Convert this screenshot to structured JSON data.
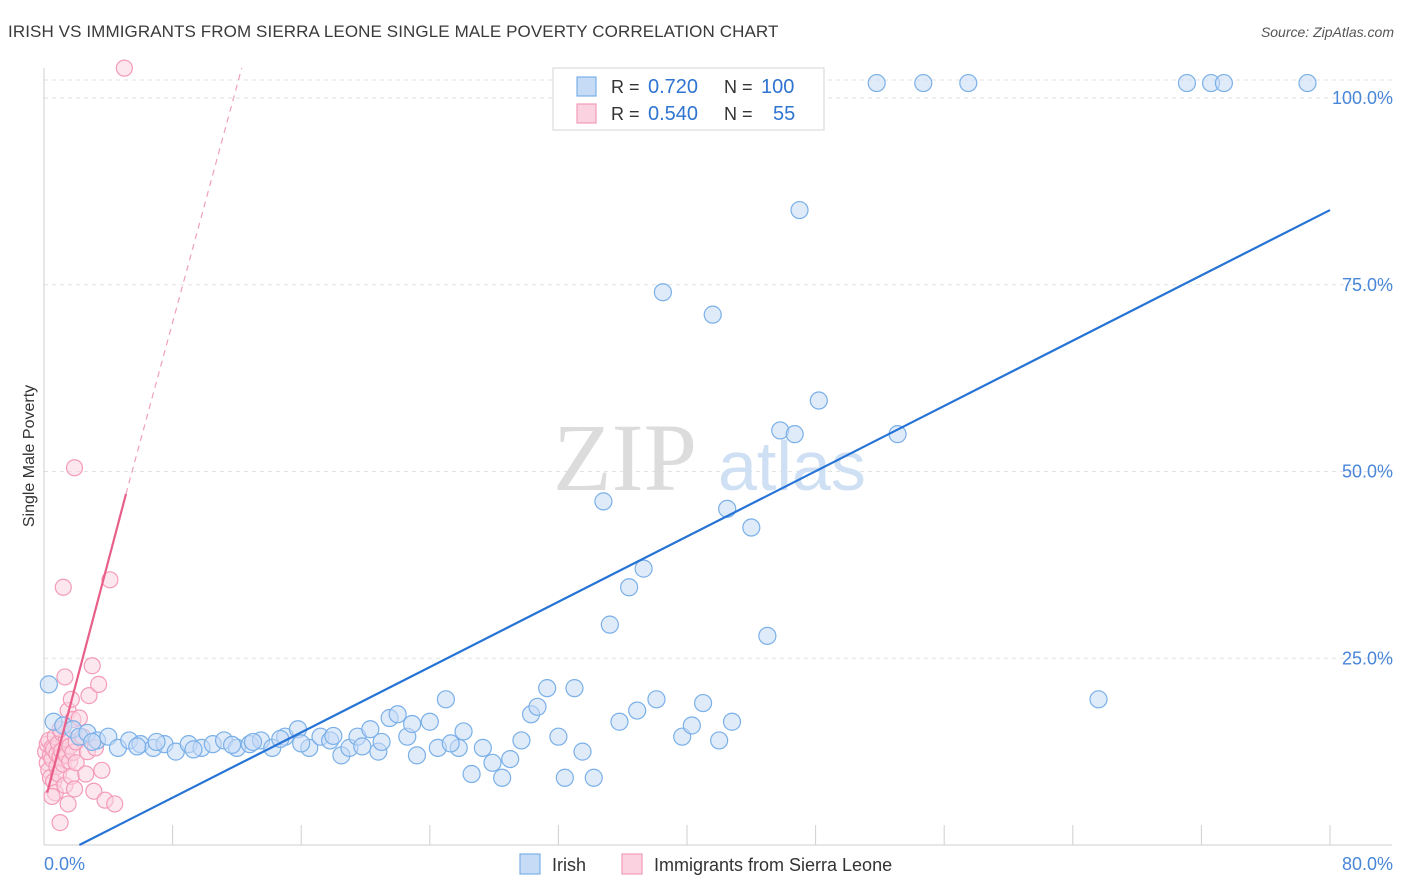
{
  "title": "IRISH VS IMMIGRANTS FROM SIERRA LEONE SINGLE MALE POVERTY CORRELATION CHART",
  "source": "Source: ZipAtlas.com",
  "watermark": {
    "zip": "ZIP",
    "atlas": "atlas"
  },
  "legend": {
    "rows": [
      {
        "r_label": "R =",
        "r_value": "0.720",
        "n_label": "N =",
        "n_value": "100",
        "color": "#7ab0e8"
      },
      {
        "r_label": "R =",
        "r_value": "0.540",
        "n_label": "N =",
        "n_value": "55",
        "color": "#f39bb8"
      }
    ]
  },
  "chart_data": {
    "type": "scatter",
    "xlabel": "",
    "ylabel": "Single Male Poverty",
    "xlim": [
      0,
      80
    ],
    "ylim": [
      0,
      100
    ],
    "x_tick_labels": [
      {
        "value": 0,
        "label": "0.0%"
      },
      {
        "value": 80,
        "label": "80.0%"
      }
    ],
    "y_tick_labels": [
      {
        "value": 25,
        "label": "25.0%"
      },
      {
        "value": 50,
        "label": "50.0%"
      },
      {
        "value": 75,
        "label": "75.0%"
      },
      {
        "value": 100,
        "label": "100.0%"
      }
    ],
    "grid": true,
    "legend_position": "bottom",
    "series": [
      {
        "name": "Irish",
        "color": "#7ab0e8",
        "line_color": "#2673d6",
        "trend": {
          "x": [
            2.2,
            80
          ],
          "y": [
            0.0,
            85.0
          ]
        },
        "points": [
          [
            0.3,
            21.5
          ],
          [
            0.6,
            16.5
          ],
          [
            1.2,
            16.0
          ],
          [
            1.8,
            15.5
          ],
          [
            2.2,
            14.5
          ],
          [
            2.7,
            15.0
          ],
          [
            3.3,
            14.0
          ],
          [
            4.0,
            14.5
          ],
          [
            4.6,
            13.0
          ],
          [
            5.3,
            14.0
          ],
          [
            6.0,
            13.5
          ],
          [
            6.8,
            13.0
          ],
          [
            7.5,
            13.5
          ],
          [
            8.2,
            12.5
          ],
          [
            9.0,
            13.5
          ],
          [
            9.8,
            13.0
          ],
          [
            10.5,
            13.5
          ],
          [
            11.2,
            14.0
          ],
          [
            12.0,
            13.0
          ],
          [
            12.8,
            13.5
          ],
          [
            13.5,
            14.0
          ],
          [
            14.2,
            13.0
          ],
          [
            15.0,
            14.5
          ],
          [
            15.8,
            15.5
          ],
          [
            16.5,
            13.0
          ],
          [
            17.2,
            14.5
          ],
          [
            17.8,
            14.0
          ],
          [
            18.5,
            12.0
          ],
          [
            19.0,
            13.0
          ],
          [
            19.5,
            14.5
          ],
          [
            20.3,
            15.5
          ],
          [
            20.8,
            12.5
          ],
          [
            21.5,
            17.0
          ],
          [
            22.0,
            17.5
          ],
          [
            22.6,
            14.5
          ],
          [
            23.2,
            12.0
          ],
          [
            24.0,
            16.5
          ],
          [
            24.5,
            13.0
          ],
          [
            25.0,
            19.5
          ],
          [
            25.8,
            13.0
          ],
          [
            26.6,
            9.5
          ],
          [
            27.3,
            13.0
          ],
          [
            27.9,
            11.0
          ],
          [
            28.5,
            9.0
          ],
          [
            29.0,
            11.5
          ],
          [
            29.7,
            14.0
          ],
          [
            30.3,
            17.5
          ],
          [
            30.7,
            18.5
          ],
          [
            31.3,
            21.0
          ],
          [
            32.0,
            14.5
          ],
          [
            32.4,
            9.0
          ],
          [
            33.0,
            21.0
          ],
          [
            33.5,
            12.5
          ],
          [
            34.2,
            9.0
          ],
          [
            34.8,
            46.0
          ],
          [
            35.2,
            29.5
          ],
          [
            35.8,
            16.5
          ],
          [
            36.4,
            34.5
          ],
          [
            36.9,
            18.0
          ],
          [
            37.3,
            37.0
          ],
          [
            37.8,
            97.0
          ],
          [
            38.1,
            19.5
          ],
          [
            38.5,
            74.0
          ],
          [
            39.7,
            14.5
          ],
          [
            40.3,
            16.0
          ],
          [
            41.0,
            19.0
          ],
          [
            41.6,
            71.0
          ],
          [
            42.0,
            14.0
          ],
          [
            42.5,
            45.0
          ],
          [
            42.8,
            16.5
          ],
          [
            43.0,
            102.0
          ],
          [
            44.0,
            42.5
          ],
          [
            45.0,
            28.0
          ],
          [
            45.8,
            55.5
          ],
          [
            46.7,
            55.0
          ],
          [
            47.0,
            85.0
          ],
          [
            48.2,
            59.5
          ],
          [
            51.8,
            102.0
          ],
          [
            53.1,
            55.0
          ],
          [
            54.7,
            102.0
          ],
          [
            57.5,
            102.0
          ],
          [
            65.6,
            19.5
          ],
          [
            71.1,
            102.0
          ],
          [
            72.6,
            102.0
          ],
          [
            73.4,
            102.0
          ],
          [
            78.6,
            102.0
          ],
          [
            3.0,
            13.8
          ],
          [
            5.8,
            13.2
          ],
          [
            7.0,
            13.8
          ],
          [
            9.3,
            12.8
          ],
          [
            11.7,
            13.4
          ],
          [
            13.0,
            13.8
          ],
          [
            14.7,
            14.2
          ],
          [
            16.0,
            13.6
          ],
          [
            18.0,
            14.6
          ],
          [
            19.8,
            13.2
          ],
          [
            21.0,
            13.8
          ],
          [
            22.9,
            16.2
          ],
          [
            25.3,
            13.6
          ],
          [
            26.1,
            15.2
          ]
        ]
      },
      {
        "name": "Immigrants from Sierra Leone",
        "color": "#f39bb8",
        "line_color": "#e8608a",
        "trend": {
          "x": [
            0.2,
            5.1
          ],
          "y": [
            7.0,
            47.0
          ]
        },
        "trend_dashed": {
          "x": [
            5.1,
            12.3
          ],
          "y": [
            47.0,
            104.0
          ]
        },
        "points": [
          [
            0.1,
            12.5
          ],
          [
            0.2,
            11.0
          ],
          [
            0.2,
            13.5
          ],
          [
            0.3,
            10.0
          ],
          [
            0.3,
            14.0
          ],
          [
            0.4,
            12.0
          ],
          [
            0.4,
            9.0
          ],
          [
            0.5,
            13.0
          ],
          [
            0.5,
            11.5
          ],
          [
            0.6,
            8.5
          ],
          [
            0.6,
            12.8
          ],
          [
            0.7,
            7.0
          ],
          [
            0.7,
            14.5
          ],
          [
            0.8,
            10.5
          ],
          [
            0.8,
            12.2
          ],
          [
            0.9,
            9.5
          ],
          [
            0.9,
            13.6
          ],
          [
            1.0,
            11.8
          ],
          [
            1.0,
            3.0
          ],
          [
            1.1,
            15.0
          ],
          [
            1.1,
            12.6
          ],
          [
            1.2,
            10.8
          ],
          [
            1.2,
            34.5
          ],
          [
            1.3,
            22.5
          ],
          [
            1.3,
            8.0
          ],
          [
            1.4,
            12.0
          ],
          [
            1.4,
            14.2
          ],
          [
            1.5,
            18.0
          ],
          [
            1.5,
            5.5
          ],
          [
            1.6,
            11.2
          ],
          [
            1.6,
            13.2
          ],
          [
            1.7,
            19.5
          ],
          [
            1.7,
            9.2
          ],
          [
            1.8,
            16.8
          ],
          [
            1.8,
            12.4
          ],
          [
            1.9,
            7.5
          ],
          [
            1.9,
            50.5
          ],
          [
            2.0,
            13.8
          ],
          [
            2.0,
            11.0
          ],
          [
            2.2,
            17.0
          ],
          [
            2.4,
            14.5
          ],
          [
            2.6,
            9.5
          ],
          [
            2.7,
            12.5
          ],
          [
            2.8,
            20.0
          ],
          [
            3.0,
            24.0
          ],
          [
            3.1,
            7.2
          ],
          [
            3.2,
            13.0
          ],
          [
            3.4,
            21.5
          ],
          [
            3.6,
            10.0
          ],
          [
            3.8,
            6.0
          ],
          [
            4.1,
            35.5
          ],
          [
            4.4,
            5.5
          ],
          [
            5.0,
            104.0
          ],
          [
            0.5,
            6.5
          ],
          [
            1.0,
            15.5
          ]
        ]
      }
    ]
  }
}
